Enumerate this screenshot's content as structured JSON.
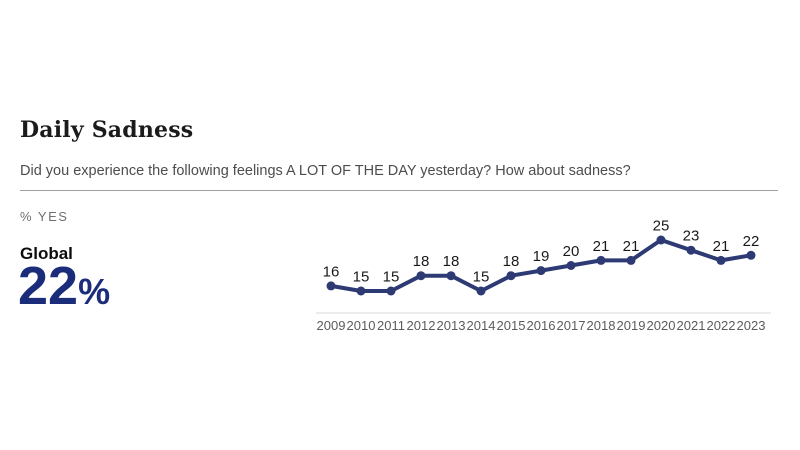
{
  "page": {
    "title": "Daily Sadness",
    "subtitle": "Did you experience the following feelings A LOT OF THE DAY yesterday? How about sadness?",
    "metric_label": "% YES",
    "stat": {
      "label": "Global",
      "value": "22",
      "percent_sign": "%"
    }
  },
  "colors": {
    "accent_navy": "#1a2c7a",
    "line_navy": "#2d3a73",
    "point_label": "#1a1a1a",
    "year_label": "#5c5c5c",
    "axis_line": "#d8d8d8",
    "subtitle_gray": "#4d4d4d",
    "divider_gray": "#a0a0a0"
  },
  "chart_data": {
    "type": "line",
    "title": "Daily Sadness",
    "xlabel": "",
    "ylabel": "% YES",
    "categories": [
      "2009",
      "2010",
      "2011",
      "2012",
      "2013",
      "2014",
      "2015",
      "2016",
      "2017",
      "2018",
      "2019",
      "2020",
      "2021",
      "2022",
      "2023"
    ],
    "series": [
      {
        "name": "Global",
        "values": [
          16,
          15,
          15,
          18,
          18,
          15,
          18,
          19,
          20,
          21,
          21,
          25,
          23,
          21,
          22
        ]
      }
    ],
    "ylim": [
      10,
      28
    ],
    "grid": false,
    "legend_position": "none",
    "point_labels": true,
    "baseline_axis": true
  }
}
